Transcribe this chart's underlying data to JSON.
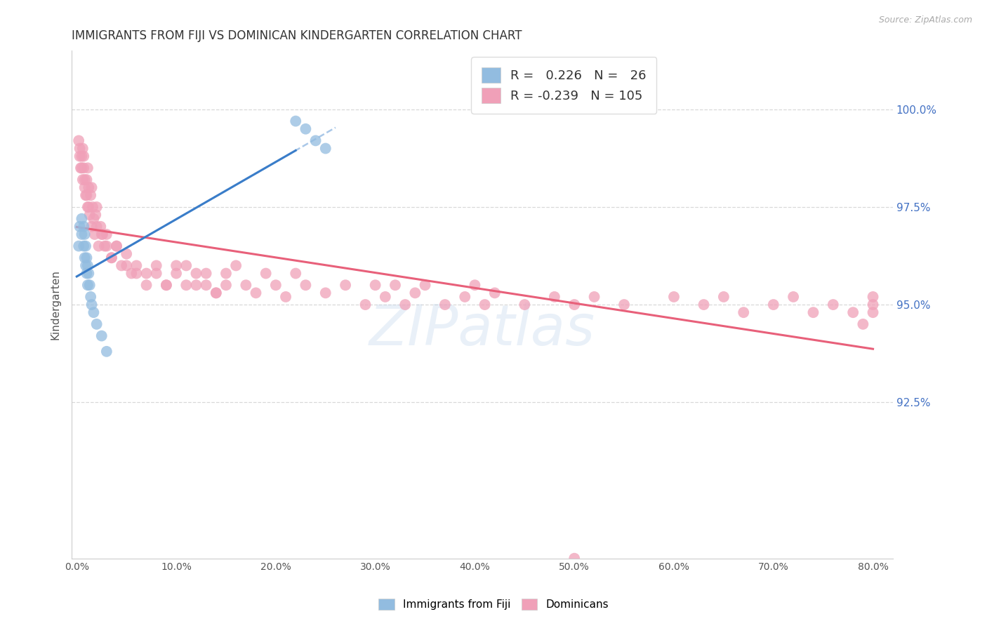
{
  "title": "IMMIGRANTS FROM FIJI VS DOMINICAN KINDERGARTEN CORRELATION CHART",
  "source": "Source: ZipAtlas.com",
  "ylabel": "Kindergarten",
  "legend_labels": [
    "Immigrants from Fiji",
    "Dominicans"
  ],
  "r_fiji": 0.226,
  "n_fiji": 26,
  "r_dominican": -0.239,
  "n_dominican": 105,
  "blue_color": "#92bce0",
  "pink_color": "#f0a0b8",
  "blue_line_color": "#3a7dc9",
  "pink_line_color": "#e8607a",
  "blue_dash_color": "#aac8e8",
  "background_color": "#ffffff",
  "grid_color": "#d8d8d8",
  "xlim": [
    -0.5,
    82.0
  ],
  "ylim": [
    88.5,
    101.5
  ],
  "ytick_positions": [
    92.5,
    95.0,
    97.5,
    100.0
  ],
  "ytick_labels": [
    "92.5%",
    "95.0%",
    "97.5%",
    "100.0%"
  ],
  "xtick_positions": [
    0,
    10,
    20,
    30,
    40,
    50,
    60,
    70,
    80
  ],
  "xtick_labels": [
    "0.0%",
    "10.0%",
    "20.0%",
    "30.0%",
    "40.0%",
    "50.0%",
    "60.0%",
    "70.0%",
    "80.0%"
  ],
  "fiji_x": [
    0.2,
    0.3,
    0.5,
    0.5,
    0.7,
    0.7,
    0.8,
    0.8,
    0.9,
    0.9,
    1.0,
    1.0,
    1.1,
    1.1,
    1.2,
    1.3,
    1.4,
    1.5,
    1.7,
    2.0,
    2.5,
    3.0,
    22.0,
    23.0,
    24.0,
    25.0
  ],
  "fiji_y": [
    96.5,
    97.0,
    97.2,
    96.8,
    97.0,
    96.5,
    96.2,
    96.8,
    96.5,
    96.0,
    95.8,
    96.2,
    95.5,
    96.0,
    95.8,
    95.5,
    95.2,
    95.0,
    94.8,
    94.5,
    94.2,
    93.8,
    99.7,
    99.5,
    99.2,
    99.0
  ],
  "dom_x": [
    0.3,
    0.4,
    0.5,
    0.6,
    0.7,
    0.8,
    0.9,
    1.0,
    1.1,
    1.2,
    1.3,
    1.4,
    1.5,
    1.6,
    1.7,
    1.8,
    1.9,
    2.0,
    2.2,
    2.4,
    2.6,
    2.8,
    3.0,
    3.5,
    4.0,
    4.5,
    5.0,
    5.5,
    6.0,
    7.0,
    8.0,
    9.0,
    10.0,
    11.0,
    12.0,
    13.0,
    14.0,
    15.0,
    16.0,
    17.0,
    18.0,
    19.0,
    20.0,
    21.0,
    22.0,
    23.0,
    25.0,
    27.0,
    29.0,
    30.0,
    31.0,
    32.0,
    33.0,
    34.0,
    35.0,
    37.0,
    39.0,
    40.0,
    41.0,
    42.0,
    45.0,
    48.0,
    50.0,
    52.0,
    55.0,
    60.0,
    63.0,
    65.0,
    67.0,
    70.0,
    72.0,
    74.0,
    76.0,
    78.0,
    79.0,
    80.0,
    80.0,
    80.0,
    0.2,
    0.3,
    0.5,
    0.6,
    0.7,
    0.8,
    1.0,
    1.1,
    1.2,
    1.5,
    2.0,
    2.5,
    3.0,
    3.5,
    4.0,
    5.0,
    6.0,
    7.0,
    8.0,
    9.0,
    10.0,
    11.0,
    12.0,
    13.0,
    14.0,
    15.0,
    50.0
  ],
  "dom_y": [
    99.0,
    98.5,
    98.8,
    98.2,
    98.5,
    98.0,
    97.8,
    98.2,
    97.5,
    98.0,
    97.3,
    97.8,
    97.0,
    97.5,
    97.2,
    96.8,
    97.3,
    97.0,
    96.5,
    97.0,
    96.8,
    96.5,
    96.8,
    96.2,
    96.5,
    96.0,
    96.3,
    95.8,
    96.0,
    95.8,
    96.0,
    95.5,
    95.8,
    96.0,
    95.5,
    95.8,
    95.3,
    95.8,
    96.0,
    95.5,
    95.3,
    95.8,
    95.5,
    95.2,
    95.8,
    95.5,
    95.3,
    95.5,
    95.0,
    95.5,
    95.2,
    95.5,
    95.0,
    95.3,
    95.5,
    95.0,
    95.2,
    95.5,
    95.0,
    95.3,
    95.0,
    95.2,
    95.0,
    95.2,
    95.0,
    95.2,
    95.0,
    95.2,
    94.8,
    95.0,
    95.2,
    94.8,
    95.0,
    94.8,
    94.5,
    95.0,
    94.8,
    95.2,
    99.2,
    98.8,
    98.5,
    99.0,
    98.8,
    98.2,
    97.8,
    98.5,
    97.5,
    98.0,
    97.5,
    96.8,
    96.5,
    96.2,
    96.5,
    96.0,
    95.8,
    95.5,
    95.8,
    95.5,
    96.0,
    95.5,
    95.8,
    95.5,
    95.3,
    95.5,
    88.5
  ]
}
